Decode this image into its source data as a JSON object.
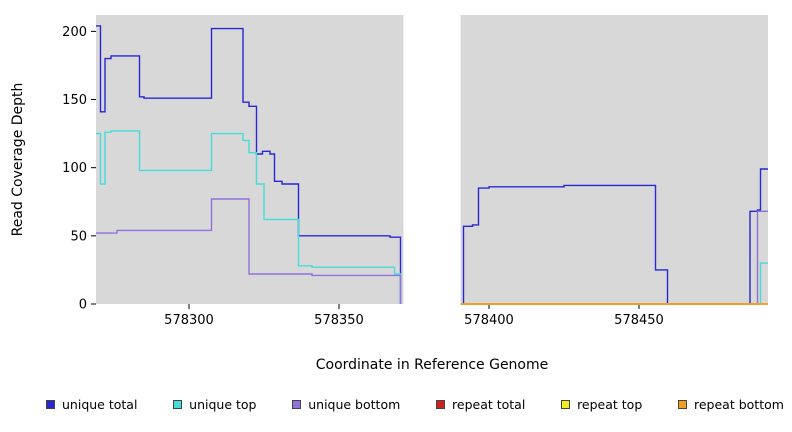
{
  "chart_data": {
    "type": "line",
    "subtype": "step",
    "title": "",
    "xlabel": "Coordinate in Reference Genome",
    "ylabel": "Read Coverage Depth",
    "xlim": [
      578269,
      578493
    ],
    "ylim": [
      0,
      212
    ],
    "x_ticks": [
      578300,
      578350,
      578400,
      578450
    ],
    "y_ticks": [
      0,
      50,
      100,
      150,
      200
    ],
    "grid": false,
    "legend_position": "bottom",
    "plot_background": "#d8d8d8",
    "gap_band": {
      "x0": 578371.5,
      "x1": 578390.5,
      "color": "#ffffff"
    },
    "series": [
      {
        "name": "unique total",
        "color": "#2828d0",
        "points": [
          [
            578269,
            204
          ],
          [
            578270.5,
            141
          ],
          [
            578272,
            180
          ],
          [
            578274,
            182
          ],
          [
            578283.5,
            152
          ],
          [
            578285,
            151
          ],
          [
            578307.5,
            202
          ],
          [
            578318,
            148
          ],
          [
            578320,
            145
          ],
          [
            578322.5,
            110
          ],
          [
            578324.5,
            112
          ],
          [
            578327,
            110
          ],
          [
            578328.5,
            90
          ],
          [
            578331,
            88
          ],
          [
            578336.5,
            50
          ],
          [
            578367,
            49
          ],
          [
            578370.5,
            0
          ],
          [
            578371.5,
            null
          ],
          [
            578390.5,
            0
          ],
          [
            578391.5,
            57
          ],
          [
            578394.5,
            58
          ],
          [
            578396.5,
            85
          ],
          [
            578400,
            86
          ],
          [
            578425,
            87
          ],
          [
            578455.5,
            25
          ],
          [
            578459.5,
            0
          ],
          [
            578487,
            68
          ],
          [
            578489.5,
            69
          ],
          [
            578490.5,
            99
          ]
        ]
      },
      {
        "name": "unique top",
        "color": "#48dbdb",
        "points": [
          [
            578269,
            125
          ],
          [
            578270.5,
            88
          ],
          [
            578272,
            126
          ],
          [
            578274,
            127
          ],
          [
            578283.5,
            98
          ],
          [
            578307.5,
            125
          ],
          [
            578318,
            120
          ],
          [
            578320,
            111
          ],
          [
            578322.5,
            88
          ],
          [
            578325,
            62
          ],
          [
            578336.5,
            28
          ],
          [
            578341,
            27
          ],
          [
            578367,
            27
          ],
          [
            578368.5,
            22
          ],
          [
            578370.5,
            0
          ],
          [
            578371.5,
            null
          ],
          [
            578390.5,
            0
          ],
          [
            578490.5,
            30
          ]
        ]
      },
      {
        "name": "unique bottom",
        "color": "#9370db",
        "points": [
          [
            578269,
            52
          ],
          [
            578276,
            54
          ],
          [
            578307.5,
            77
          ],
          [
            578320,
            22
          ],
          [
            578341,
            21
          ],
          [
            578370.5,
            0
          ],
          [
            578371.5,
            null
          ],
          [
            578390.5,
            0
          ],
          [
            578489.5,
            68
          ]
        ]
      },
      {
        "name": "repeat total",
        "color": "#d02020",
        "points": [
          [
            578269,
            0
          ],
          [
            578371.5,
            null
          ],
          [
            578390.5,
            0
          ]
        ]
      },
      {
        "name": "repeat top",
        "color": "#eeee22",
        "points": [
          [
            578269,
            0
          ],
          [
            578371.5,
            null
          ],
          [
            578390.5,
            0
          ]
        ]
      },
      {
        "name": "repeat bottom",
        "color": "#f0a020",
        "points": [
          [
            578269,
            0
          ],
          [
            578371.5,
            null
          ],
          [
            578390.5,
            0
          ]
        ]
      }
    ]
  }
}
